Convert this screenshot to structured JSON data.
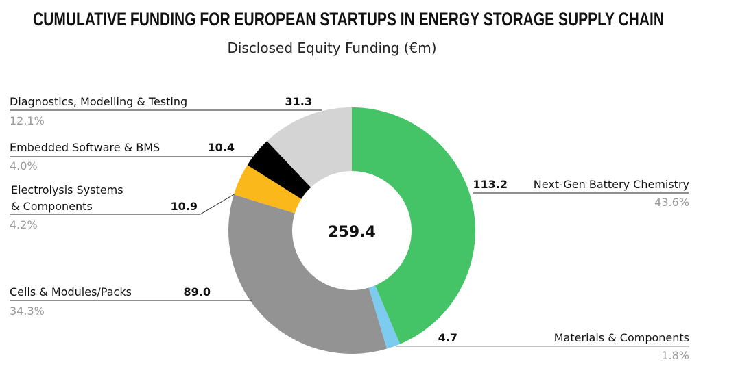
{
  "title": "CUMULATIVE FUNDING FOR EUROPEAN STARTUPS IN ENERGY STORAGE SUPPLY CHAIN",
  "subtitle": "Disclosed Equity Funding (€m)",
  "chart_data": {
    "type": "pie",
    "donut": true,
    "total_label": "259.4",
    "slices": [
      {
        "name": "Next-Gen Battery Chemistry",
        "value": 113.2,
        "value_label": "113.2",
        "percent": "43.6%",
        "color": "#44c467"
      },
      {
        "name": "Materials & Components",
        "value": 4.7,
        "value_label": "4.7",
        "percent": "1.8%",
        "color": "#7ecbf0"
      },
      {
        "name": "Cells & Modules/Packs",
        "value": 89.0,
        "value_label": "89.0",
        "percent": "34.3%",
        "color": "#939393"
      },
      {
        "name_lines": [
          "Electrolysis Systems",
          "& Components"
        ],
        "name": "Electrolysis Systems & Components",
        "value": 10.9,
        "value_label": "10.9",
        "percent": "4.2%",
        "color": "#fbb81b"
      },
      {
        "name": "Embedded Software & BMS",
        "value": 10.4,
        "value_label": "10.4",
        "percent": "4.0%",
        "color": "#000000"
      },
      {
        "name": "Diagnostics, Modelling & Testing",
        "value": 31.3,
        "value_label": "31.3",
        "percent": "12.1%",
        "color": "#d4d4d4"
      }
    ]
  }
}
